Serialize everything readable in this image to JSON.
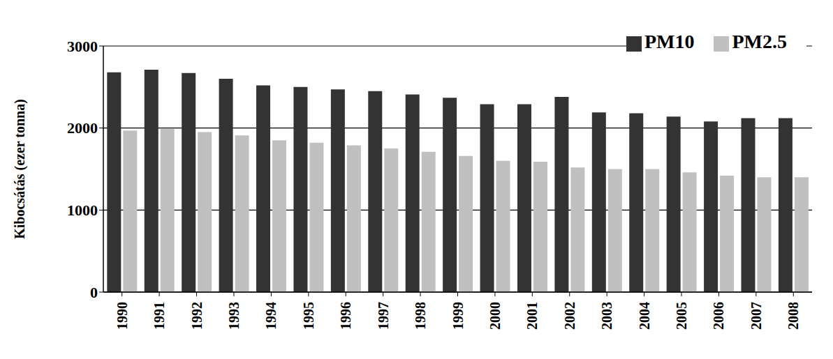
{
  "chart_data": {
    "type": "bar",
    "y_label": "Kibocsátás (ezer tonna)",
    "categories": [
      "1990",
      "1991",
      "1992",
      "1993",
      "1994",
      "1995",
      "1996",
      "1997",
      "1998",
      "1999",
      "2000",
      "2001",
      "2002",
      "2003",
      "2004",
      "2005",
      "2006",
      "2007",
      "2008"
    ],
    "series": [
      {
        "name": "PM10",
        "color": "#333333",
        "values": [
          2680,
          2710,
          2670,
          2600,
          2520,
          2500,
          2470,
          2450,
          2410,
          2370,
          2290,
          2290,
          2380,
          2190,
          2180,
          2140,
          2080,
          2120,
          2120
        ]
      },
      {
        "name": "PM2.5",
        "color": "#c0c0c0",
        "values": [
          1970,
          1990,
          1950,
          1910,
          1850,
          1820,
          1790,
          1750,
          1710,
          1660,
          1600,
          1590,
          1520,
          1500,
          1500,
          1460,
          1420,
          1400,
          1400
        ]
      }
    ],
    "ylim": [
      0,
      3000
    ],
    "yticks": [
      0,
      1000,
      2000,
      3000
    ],
    "grid": true,
    "legend": "top-right"
  }
}
